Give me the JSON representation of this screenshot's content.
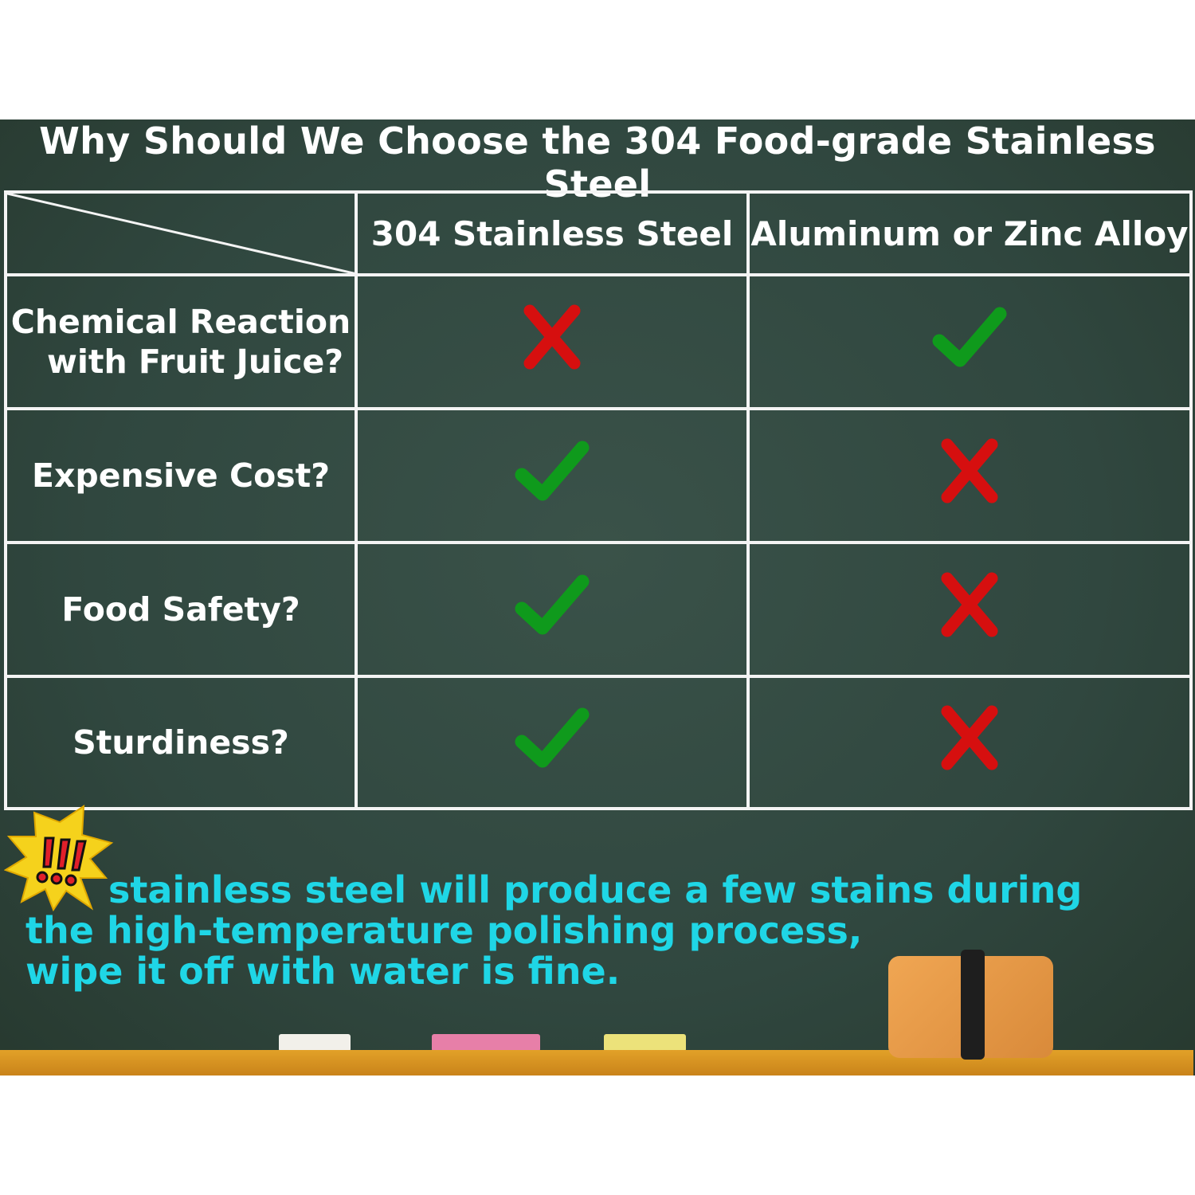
{
  "title": "Why Should We Choose the 304 Food-grade Stainless Steel",
  "table": {
    "columns": [
      "304 Stainless Steel",
      "Aluminum or Zinc Alloy"
    ],
    "rows": [
      {
        "label_line1": "Chemical Reaction",
        "label_line2": "with Fruit Juice?",
        "values": [
          "cross-icon",
          "check-icon"
        ]
      },
      {
        "label_line1": "Expensive Cost?",
        "label_line2": "",
        "values": [
          "check-icon",
          "cross-icon"
        ]
      },
      {
        "label_line1": "Food Safety?",
        "label_line2": "",
        "values": [
          "check-icon",
          "cross-icon"
        ]
      },
      {
        "label_line1": "Sturdiness?",
        "label_line2": "",
        "values": [
          "check-icon",
          "cross-icon"
        ]
      }
    ]
  },
  "note": {
    "icon": "exclamation-burst-icon",
    "lines": [
      "stainless steel will produce a few stains during",
      "the high-temperature polishing process,",
      "wipe it off with water is fine."
    ]
  },
  "colors": {
    "board": "#30473f",
    "check": "#0f9a1c",
    "cross": "#d60f0f",
    "note": "#1fd6e6",
    "ledge": "#e2a128"
  }
}
